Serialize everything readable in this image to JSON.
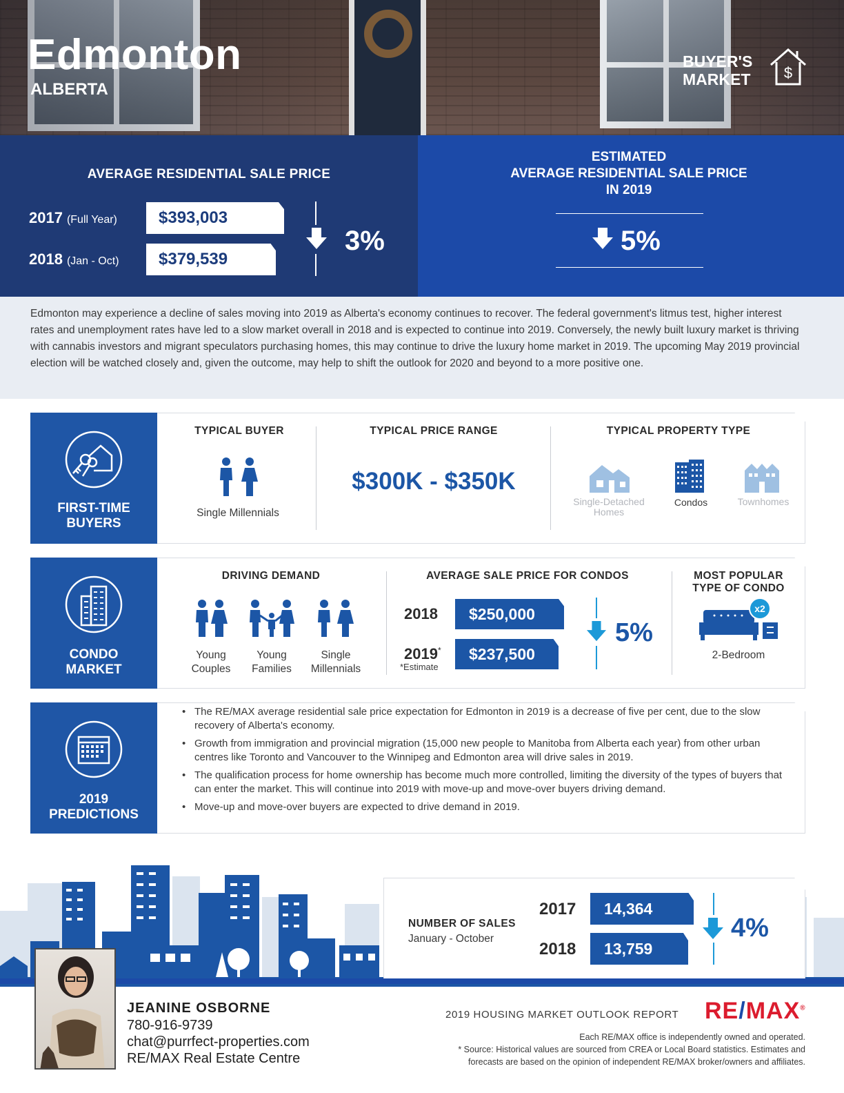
{
  "header": {
    "city": "Edmonton",
    "province": "ALBERTA",
    "market_line1": "BUYER'S",
    "market_line2": "MARKET",
    "market_icon": "house-dollar-icon"
  },
  "avg_price": {
    "heading": "AVERAGE RESIDENTIAL SALE PRICE",
    "rows": [
      {
        "year": "2017",
        "period": "(Full Year)",
        "value": "$393,003"
      },
      {
        "year": "2018",
        "period": "(Jan - Oct)",
        "value": "$379,539"
      }
    ],
    "change": "3%",
    "direction": "down"
  },
  "estimate_2019": {
    "line1": "ESTIMATED",
    "line2": "AVERAGE RESIDENTIAL SALE PRICE",
    "line3": "IN 2019",
    "change": "5%",
    "direction": "down"
  },
  "intro_text": "Edmonton may experience a decline of sales moving into 2019 as Alberta's economy continues to recover. The federal government's litmus test, higher interest rates and unemployment rates have led to a slow market overall in 2018 and is expected to continue into 2019. Conversely, the newly built luxury market is thriving with cannabis investors and migrant speculators purchasing homes, this may continue to drive the luxury home market in 2019. The upcoming May 2019 provincial election will be watched closely and, given the outcome, may help to shift the outlook for 2020 and beyond to a more positive one.",
  "first_time": {
    "tab_line1": "FIRST-TIME",
    "tab_line2": "BUYERS",
    "tab_icon": "house-keys-icon",
    "buyer_heading": "TYPICAL BUYER",
    "buyer_label": "Single Millennials",
    "range_heading": "TYPICAL PRICE RANGE",
    "range_value": "$300K - $350K",
    "type_heading": "TYPICAL PROPERTY TYPE",
    "types": [
      {
        "line1": "Single-Detached",
        "line2": "Homes",
        "active": false
      },
      {
        "line1": "Condos",
        "line2": "",
        "active": true
      },
      {
        "line1": "Townhomes",
        "line2": "",
        "active": false
      }
    ]
  },
  "condo": {
    "tab_line1": "CONDO",
    "tab_line2": "MARKET",
    "tab_icon": "condo-building-icon",
    "demand_heading": "DRIVING DEMAND",
    "demand": [
      {
        "line1": "Young",
        "line2": "Couples"
      },
      {
        "line1": "Young",
        "line2": "Families"
      },
      {
        "line1": "Single",
        "line2": "Millennials"
      }
    ],
    "price_heading": "AVERAGE SALE PRICE FOR CONDOS",
    "prices": [
      {
        "year": "2018",
        "note": "",
        "value": "$250,000"
      },
      {
        "year": "2019",
        "note": "*Estimate",
        "value": "$237,500"
      }
    ],
    "change": "5%",
    "popular_line1": "MOST POPULAR",
    "popular_line2": "TYPE OF CONDO",
    "popular_label": "2-Bedroom",
    "popular_badge": "x2"
  },
  "predictions": {
    "tab_line1": "2019",
    "tab_line2": "PREDICTIONS",
    "tab_icon": "calendar-icon",
    "items": [
      "The RE/MAX average residential sale price expectation for Edmonton in 2019 is a decrease of five per cent, due to the slow recovery of Alberta's economy.",
      "Growth from immigration and provincial migration (15,000 new people to Manitoba from Alberta each year) from other urban centres like Toronto and Vancouver to the Winnipeg and Edmonton area will drive sales in 2019.",
      "The qualification process for home ownership has become much more controlled, limiting the diversity of the types of buyers that can enter the market. This will continue into 2019 with move-up and move-over buyers driving demand.",
      "Move-up and move-over buyers are expected to drive demand in 2019."
    ]
  },
  "sales": {
    "title": "NUMBER OF SALES",
    "subtitle": "January - October",
    "rows": [
      {
        "year": "2017",
        "value": "14,364"
      },
      {
        "year": "2018",
        "value": "13,759"
      }
    ],
    "change": "4%"
  },
  "agent": {
    "name": "JEANINE OSBORNE",
    "phone": "780-916-9739",
    "email": "chat@purrfect-properties.com",
    "office": "RE/MAX Real Estate Centre"
  },
  "footer": {
    "report_title": "2019 HOUSING MARKET OUTLOOK REPORT",
    "brand_left": "RE",
    "brand_slash": "/",
    "brand_right": "MAX",
    "brand_mark": "®",
    "disclaimer1": "Each RE/MAX office is independently owned and operated.",
    "disclaimer2": "* Source: Historical values are sourced from CREA or Local Board statistics. Estimates and",
    "disclaimer3": "forecasts are based on the opinion of independent RE/MAX broker/owners and affiliates."
  },
  "colors": {
    "navy": "#1f3a75",
    "royal": "#1c4aa8",
    "blue": "#1c56a6",
    "cyan": "#1c99d8",
    "remax_red": "#dc1c2e"
  }
}
